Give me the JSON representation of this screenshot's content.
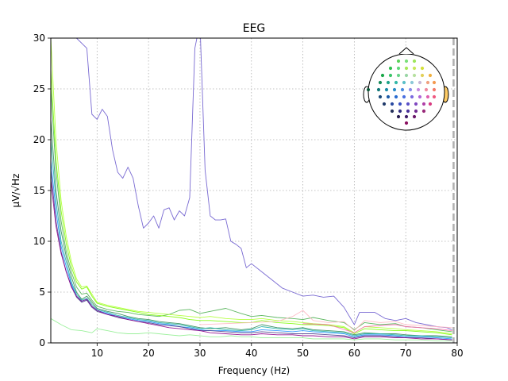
{
  "chart_data": {
    "type": "line",
    "title": "EEG",
    "xlabel": "Frequency (Hz)",
    "ylabel": "µV/√Hz",
    "xlim": [
      1,
      80
    ],
    "ylim": [
      0,
      30
    ],
    "x_ticks": [
      10,
      20,
      30,
      40,
      50,
      60,
      70,
      80
    ],
    "y_ticks": [
      0,
      5,
      10,
      15,
      20,
      25,
      30
    ],
    "grid": true,
    "legend": "none",
    "vline": 79.3,
    "series": [
      {
        "color": "#6a5acd",
        "x": [
          1,
          4,
          6,
          8,
          9,
          10,
          11,
          12,
          13,
          14,
          15,
          16,
          17,
          18,
          19,
          20,
          21,
          22,
          23,
          24,
          25,
          26,
          27,
          28,
          29,
          30,
          31,
          32,
          33,
          34,
          35,
          36,
          37,
          38,
          39,
          40,
          42,
          44,
          46,
          48,
          50,
          52,
          54,
          56,
          58,
          60,
          61,
          64,
          66,
          68,
          70,
          72,
          74,
          76,
          78,
          79
        ],
        "y": [
          34,
          31,
          30,
          29,
          22.5,
          22,
          23,
          22.3,
          19,
          16.8,
          16.2,
          17.3,
          16.2,
          13.5,
          11.3,
          11.8,
          12.5,
          11.3,
          13.1,
          13.3,
          12.1,
          13,
          12.5,
          14.3,
          29,
          31.5,
          17,
          12.5,
          12.1,
          12.1,
          12.2,
          10,
          9.7,
          9.3,
          7.4,
          7.8,
          7,
          6.2,
          5.4,
          5,
          4.6,
          4.7,
          4.5,
          4.6,
          3.5,
          1.8,
          3,
          3,
          2.4,
          2.2,
          2.4,
          2,
          1.8,
          1.6,
          1.5,
          1.3
        ]
      },
      {
        "color": "#4caf50",
        "x": [
          1,
          2,
          3,
          4,
          5,
          6,
          7,
          8,
          9,
          10,
          12,
          14,
          16,
          18,
          20,
          22,
          24,
          26,
          28,
          30,
          32,
          35,
          38,
          40,
          42,
          45,
          48,
          50,
          52,
          55,
          58,
          60,
          62,
          65,
          68,
          70,
          73,
          76,
          79
        ],
        "y": [
          25,
          17,
          12,
          9,
          7,
          5.5,
          4.8,
          4.9,
          4.2,
          3.6,
          3.3,
          3.1,
          3.0,
          2.8,
          2.7,
          2.6,
          2.8,
          3.2,
          3.3,
          2.9,
          3.1,
          3.4,
          2.9,
          2.6,
          2.7,
          2.5,
          2.4,
          2.3,
          2.5,
          2.2,
          2.0,
          1.3,
          2.0,
          1.8,
          1.9,
          1.6,
          1.5,
          1.3,
          1.1
        ]
      },
      {
        "color": "#2e8b57",
        "x": [
          1,
          2,
          3,
          4,
          5,
          6,
          7,
          8,
          9,
          10,
          12,
          14,
          16,
          18,
          20,
          22,
          24,
          26,
          28,
          30,
          32,
          35,
          38,
          40,
          42,
          45,
          48,
          50,
          52,
          55,
          58,
          60,
          62,
          65,
          68,
          70,
          73,
          76,
          79
        ],
        "y": [
          22,
          15,
          11,
          8.5,
          6.5,
          5,
          4.3,
          4.6,
          4,
          3.4,
          3.1,
          2.9,
          2.6,
          2.4,
          2.3,
          2.1,
          2.0,
          1.9,
          1.7,
          1.5,
          1.4,
          1.5,
          1.3,
          1.4,
          1.8,
          1.5,
          1.4,
          1.5,
          1.3,
          1.2,
          1.1,
          0.8,
          1.0,
          0.9,
          0.9,
          0.8,
          0.7,
          0.7,
          0.6
        ]
      },
      {
        "color": "#20b2aa",
        "x": [
          1,
          2,
          3,
          4,
          5,
          6,
          7,
          8,
          9,
          10,
          12,
          14,
          16,
          18,
          20,
          22,
          24,
          26,
          28,
          30,
          32,
          35,
          38,
          40,
          42,
          45,
          48,
          50,
          52,
          55,
          58,
          60,
          62,
          65,
          68,
          70,
          73,
          76,
          79
        ],
        "y": [
          20,
          14,
          10,
          8,
          6,
          4.8,
          4.2,
          4.4,
          3.8,
          3.3,
          3.0,
          2.7,
          2.5,
          2.3,
          2.2,
          2.0,
          1.9,
          1.8,
          1.6,
          1.4,
          1.5,
          1.3,
          1.2,
          1.3,
          1.6,
          1.4,
          1.3,
          1.4,
          1.2,
          1.1,
          1.0,
          0.7,
          0.9,
          0.9,
          0.8,
          0.7,
          0.7,
          0.6,
          0.5
        ]
      },
      {
        "color": "#1e90ff",
        "x": [
          1,
          2,
          3,
          4,
          5,
          6,
          7,
          8,
          9,
          10,
          12,
          14,
          16,
          18,
          20,
          22,
          24,
          26,
          28,
          30,
          32,
          35,
          38,
          40,
          42,
          45,
          48,
          50,
          52,
          55,
          58,
          60,
          62,
          65,
          68,
          70,
          73,
          76,
          79
        ],
        "y": [
          18,
          13,
          9.5,
          7.5,
          5.8,
          4.6,
          4.1,
          4.3,
          3.6,
          3.2,
          2.9,
          2.6,
          2.4,
          2.2,
          2.1,
          1.9,
          1.8,
          1.6,
          1.5,
          1.3,
          1.2,
          1.2,
          1.1,
          1.1,
          1.3,
          1.2,
          1.1,
          1.2,
          1.1,
          1.0,
          0.9,
          0.6,
          0.8,
          0.8,
          0.7,
          0.6,
          0.6,
          0.5,
          0.4
        ]
      },
      {
        "color": "#483d8b",
        "x": [
          1,
          2,
          3,
          4,
          5,
          6,
          7,
          8,
          9,
          10,
          12,
          14,
          16,
          18,
          20,
          22,
          24,
          26,
          28,
          30,
          32,
          35,
          38,
          40,
          42,
          45,
          48,
          50,
          52,
          55,
          58,
          60,
          62,
          65,
          68,
          70,
          73,
          76,
          79
        ],
        "y": [
          17,
          12,
          9,
          7,
          5.6,
          4.5,
          4.0,
          4.2,
          3.5,
          3.1,
          2.8,
          2.5,
          2.3,
          2.1,
          2.0,
          1.8,
          1.7,
          1.6,
          1.4,
          1.2,
          1.2,
          1.1,
          1.0,
          1.0,
          1.1,
          1.0,
          0.9,
          0.9,
          0.9,
          0.8,
          0.7,
          0.5,
          0.7,
          0.7,
          0.6,
          0.5,
          0.5,
          0.4,
          0.3
        ]
      },
      {
        "color": "#8b008b",
        "x": [
          1,
          2,
          3,
          4,
          5,
          6,
          7,
          8,
          9,
          10,
          12,
          14,
          16,
          18,
          20,
          22,
          24,
          26,
          28,
          30,
          32,
          35,
          38,
          40,
          42,
          45,
          48,
          50,
          52,
          55,
          58,
          60,
          62,
          65,
          68,
          70,
          73,
          76,
          79
        ],
        "y": [
          16,
          11.5,
          8.8,
          7,
          5.5,
          4.6,
          4.1,
          4.3,
          3.6,
          3.2,
          2.8,
          2.6,
          2.3,
          2.1,
          1.9,
          1.7,
          1.5,
          1.4,
          1.3,
          1.2,
          1.0,
          0.9,
          0.8,
          0.8,
          0.9,
          0.8,
          0.8,
          0.7,
          0.7,
          0.6,
          0.6,
          0.4,
          0.6,
          0.6,
          0.5,
          0.5,
          0.4,
          0.4,
          0.3
        ]
      },
      {
        "color": "#adff2f",
        "x": [
          1,
          2,
          3,
          4,
          5,
          6,
          7,
          8,
          9,
          10,
          12,
          14,
          16,
          18,
          20,
          22,
          24,
          26,
          28,
          30,
          32,
          35,
          38,
          40,
          42,
          45,
          48,
          50,
          52,
          55,
          58,
          60,
          62,
          65,
          68,
          70,
          73,
          76,
          79
        ],
        "y": [
          30,
          20,
          14,
          10.5,
          8,
          6.3,
          5.5,
          5.6,
          4.8,
          4.0,
          3.7,
          3.5,
          3.3,
          3.1,
          3.0,
          2.9,
          2.8,
          2.7,
          2.6,
          2.5,
          2.6,
          2.4,
          2.3,
          2.3,
          2.4,
          2.2,
          2.1,
          2.0,
          1.9,
          1.8,
          1.6,
          1.0,
          1.6,
          1.5,
          1.4,
          1.3,
          1.2,
          1.1,
          0.9
        ]
      },
      {
        "color": "#7cfc00",
        "x": [
          1,
          2,
          3,
          4,
          5,
          6,
          7,
          8,
          9,
          10,
          12,
          14,
          16,
          18,
          20,
          22,
          24,
          26,
          28,
          30,
          32,
          35,
          38,
          40,
          42,
          45,
          48,
          50,
          52,
          55,
          58,
          60,
          62,
          65,
          68,
          70,
          73,
          76,
          79
        ],
        "y": [
          27,
          18,
          13,
          9.8,
          7.5,
          6,
          5.3,
          5.5,
          4.6,
          3.9,
          3.6,
          3.4,
          3.2,
          3.0,
          2.8,
          2.7,
          2.6,
          2.5,
          2.3,
          2.2,
          2.2,
          2.1,
          2.0,
          2.0,
          2.2,
          2.0,
          1.9,
          1.8,
          1.8,
          1.7,
          1.5,
          0.9,
          1.4,
          1.3,
          1.2,
          1.2,
          1.1,
          1.0,
          0.8
        ]
      },
      {
        "color": "#90ee90",
        "x": [
          1,
          3,
          5,
          7,
          9,
          10,
          12,
          14,
          16,
          18,
          20,
          22,
          24,
          26,
          28,
          30,
          32,
          34,
          36,
          38,
          40,
          42,
          45,
          48,
          50,
          52,
          55,
          58,
          60,
          62,
          65,
          68,
          70,
          73,
          76,
          79
        ],
        "y": [
          2.4,
          1.8,
          1.3,
          1.2,
          1.0,
          1.4,
          1.2,
          1.0,
          0.9,
          0.9,
          1.0,
          0.9,
          0.8,
          0.7,
          0.8,
          0.7,
          0.6,
          0.6,
          0.7,
          0.6,
          0.6,
          0.5,
          0.5,
          0.5,
          0.5,
          0.4,
          0.4,
          0.4,
          0.3,
          0.4,
          0.4,
          0.3,
          0.3,
          0.3,
          0.2,
          0.2
        ]
      },
      {
        "color": "#ffb6c1",
        "x": [
          30,
          35,
          40,
          45,
          48,
          50,
          52,
          55,
          58,
          60,
          62,
          65,
          68,
          70,
          73,
          76,
          79
        ],
        "y": [
          1.8,
          1.9,
          2.0,
          2.1,
          2.6,
          3.2,
          2.2,
          2.0,
          2.1,
          1.2,
          2.2,
          2.0,
          2.1,
          1.8,
          1.7,
          1.6,
          1.5
        ]
      },
      {
        "color": "#ff69b4",
        "x": [
          50,
          55,
          60,
          62,
          65,
          68,
          70,
          73,
          76,
          79
        ],
        "y": [
          1.9,
          1.8,
          1.0,
          1.6,
          1.7,
          1.8,
          1.6,
          1.5,
          1.4,
          1.2
        ]
      }
    ]
  }
}
